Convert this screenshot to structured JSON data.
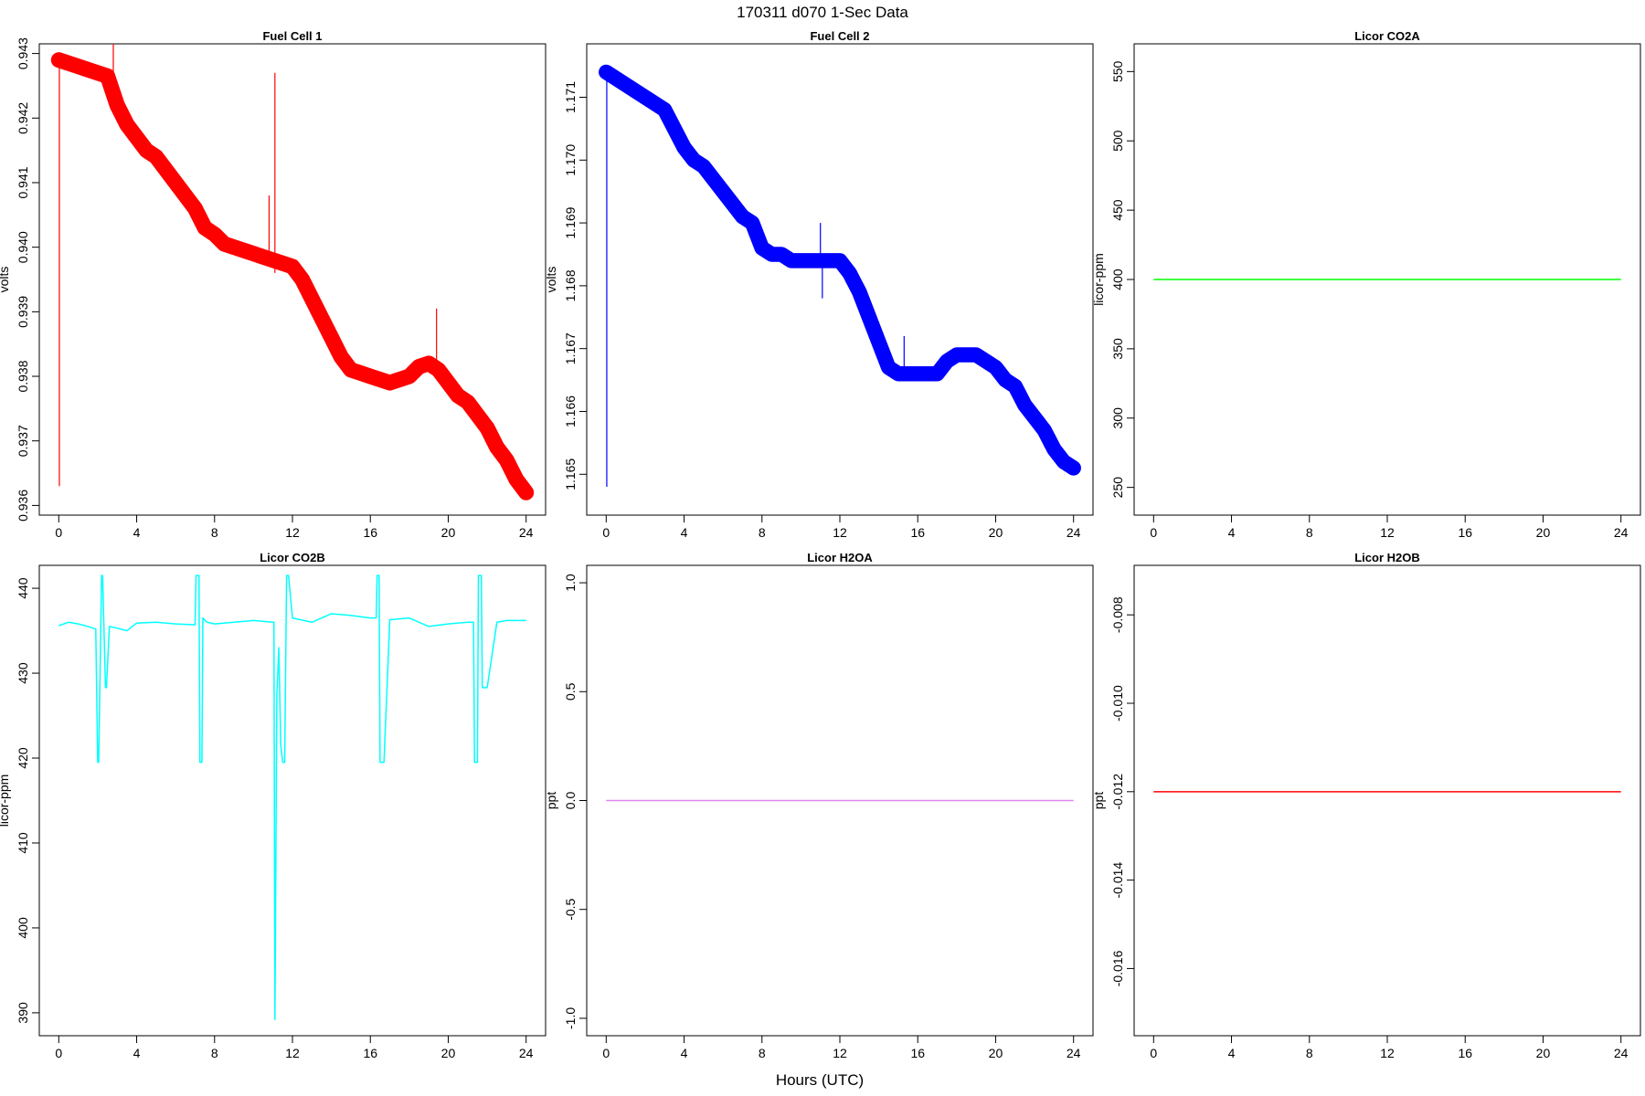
{
  "figure": {
    "title": "170311   d070   1-Sec Data",
    "xlabel": "Hours (UTC)"
  },
  "chart_data": [
    {
      "type": "line",
      "title": "Fuel Cell 1",
      "ylabel": "volts",
      "color": "#ff0000",
      "band": 0.00012,
      "xlim": [
        -1,
        25
      ],
      "ylim": [
        0.93585,
        0.94315
      ],
      "xticks": [
        0,
        4,
        8,
        12,
        16,
        20,
        24
      ],
      "yticks": [
        0.936,
        0.937,
        0.938,
        0.939,
        0.94,
        0.941,
        0.942,
        0.943
      ],
      "ytick_labels": [
        "0.936",
        "0.937",
        "0.938",
        "0.939",
        "0.940",
        "0.941",
        "0.942",
        "0.943"
      ],
      "series": [
        {
          "x": [
            0,
            0.5,
            1,
            1.5,
            2,
            2.5,
            3,
            3.5,
            4,
            4.5,
            5,
            5.5,
            6,
            6.5,
            7,
            7.5,
            8,
            8.5,
            9,
            9.5,
            10,
            10.5,
            11,
            11.5,
            12,
            12.5,
            13,
            13.5,
            14,
            14.5,
            15,
            15.5,
            16,
            16.5,
            17,
            17.5,
            18,
            18.5,
            19,
            19.5,
            20,
            20.5,
            21,
            21.5,
            22,
            22.5,
            23,
            23.5,
            24
          ],
          "y": [
            0.9429,
            0.94285,
            0.9428,
            0.94275,
            0.9427,
            0.94265,
            0.9422,
            0.9419,
            0.9417,
            0.9415,
            0.9414,
            0.9412,
            0.941,
            0.9408,
            0.9406,
            0.9403,
            0.9402,
            0.94005,
            0.94,
            0.93995,
            0.9399,
            0.93985,
            0.9398,
            0.93975,
            0.9397,
            0.9395,
            0.9392,
            0.9389,
            0.9386,
            0.9383,
            0.9381,
            0.93805,
            0.938,
            0.93795,
            0.9379,
            0.93795,
            0.938,
            0.93815,
            0.9382,
            0.9381,
            0.9379,
            0.9377,
            0.9376,
            0.9374,
            0.9372,
            0.9369,
            0.9367,
            0.9364,
            0.9362
          ]
        }
      ],
      "spikes": [
        {
          "x": 0.03,
          "y0": 0.9429,
          "y1": 0.9363
        },
        {
          "x": 2.8,
          "y0": 0.9425,
          "y1": 0.94315
        },
        {
          "x": 10.8,
          "y0": 0.9397,
          "y1": 0.9408
        },
        {
          "x": 11.1,
          "y0": 0.9396,
          "y1": 0.9427
        },
        {
          "x": 19.4,
          "y0": 0.9382,
          "y1": 0.93905
        }
      ]
    },
    {
      "type": "line",
      "title": "Fuel Cell 2",
      "ylabel": "volts",
      "color": "#0000ff",
      "band": 0.00012,
      "xlim": [
        -1,
        25
      ],
      "ylim": [
        1.16435,
        1.17185
      ],
      "xticks": [
        0,
        4,
        8,
        12,
        16,
        20,
        24
      ],
      "yticks": [
        1.165,
        1.166,
        1.167,
        1.168,
        1.169,
        1.17,
        1.171
      ],
      "ytick_labels": [
        "1.165",
        "1.166",
        "1.167",
        "1.168",
        "1.169",
        "1.170",
        "1.171"
      ],
      "series": [
        {
          "x": [
            0,
            0.5,
            1,
            1.5,
            2,
            2.5,
            3,
            3.5,
            4,
            4.5,
            5,
            5.5,
            6,
            6.5,
            7,
            7.5,
            8,
            8.5,
            9,
            9.5,
            10,
            10.5,
            11,
            11.5,
            12,
            12.5,
            13,
            13.5,
            14,
            14.5,
            15,
            15.5,
            16,
            16.5,
            17,
            17.5,
            18,
            18.5,
            19,
            19.5,
            20,
            20.5,
            21,
            21.5,
            22,
            22.5,
            23,
            23.5,
            24
          ],
          "y": [
            1.1714,
            1.1713,
            1.1712,
            1.1711,
            1.171,
            1.1709,
            1.1708,
            1.1705,
            1.1702,
            1.17,
            1.1699,
            1.1697,
            1.1695,
            1.1693,
            1.1691,
            1.169,
            1.1686,
            1.1685,
            1.1685,
            1.1684,
            1.1684,
            1.1684,
            1.1684,
            1.1684,
            1.1684,
            1.1682,
            1.1679,
            1.1675,
            1.1671,
            1.1667,
            1.1666,
            1.1666,
            1.1666,
            1.1666,
            1.1666,
            1.1668,
            1.1669,
            1.1669,
            1.1669,
            1.1668,
            1.1667,
            1.1665,
            1.1664,
            1.1661,
            1.1659,
            1.1657,
            1.1654,
            1.1652,
            1.1651
          ]
        }
      ],
      "spikes": [
        {
          "x": 0.03,
          "y0": 1.1714,
          "y1": 1.1648
        },
        {
          "x": 11.0,
          "y0": 1.1684,
          "y1": 1.169
        },
        {
          "x": 11.1,
          "y0": 1.1684,
          "y1": 1.1678
        },
        {
          "x": 15.3,
          "y0": 1.1666,
          "y1": 1.1672
        }
      ]
    },
    {
      "type": "line",
      "title": "Licor CO2A",
      "ylabel": "licor-ppm",
      "color": "#00ff00",
      "band": 0,
      "xlim": [
        -1,
        25
      ],
      "ylim": [
        230,
        570
      ],
      "xticks": [
        0,
        4,
        8,
        12,
        16,
        20,
        24
      ],
      "yticks": [
        250,
        300,
        350,
        400,
        450,
        500,
        550
      ],
      "ytick_labels": [
        "250",
        "300",
        "350",
        "400",
        "450",
        "500",
        "550"
      ],
      "series": [
        {
          "x": [
            0,
            24
          ],
          "y": [
            400,
            400
          ]
        }
      ],
      "spikes": []
    },
    {
      "type": "line",
      "title": "Licor CO2B",
      "ylabel": "licor-ppm",
      "color": "#00ffff",
      "band": 0,
      "xlim": [
        -1,
        25
      ],
      "ylim": [
        387.3,
        442.7
      ],
      "xticks": [
        0,
        4,
        8,
        12,
        16,
        20,
        24
      ],
      "yticks": [
        390,
        400,
        410,
        420,
        430,
        440
      ],
      "ytick_labels": [
        "390",
        "400",
        "410",
        "420",
        "430",
        "440"
      ],
      "series": [
        {
          "x": [
            0,
            0.5,
            1,
            1.5,
            1.9,
            2.0,
            2.05,
            2.2,
            2.25,
            2.4,
            2.45,
            2.6,
            3.0,
            3.5,
            4,
            5,
            6,
            7.0,
            7.05,
            7.2,
            7.25,
            7.35,
            7.4,
            7.6,
            8,
            9,
            10,
            11.0,
            11.05,
            11.1,
            11.2,
            11.3,
            11.4,
            11.5,
            11.6,
            11.7,
            11.8,
            12,
            13,
            14,
            15,
            16,
            16.3,
            16.35,
            16.45,
            16.5,
            16.7,
            17,
            18,
            19,
            20,
            21,
            21.3,
            21.35,
            21.5,
            21.55,
            21.7,
            21.75,
            22,
            22.5,
            23,
            24
          ],
          "y": [
            435.6,
            436.0,
            435.8,
            435.5,
            435.2,
            419.5,
            419.5,
            441.5,
            441.5,
            428.3,
            428.3,
            435.5,
            435.3,
            435.0,
            435.9,
            436.0,
            435.8,
            435.7,
            441.5,
            441.5,
            419.5,
            419.5,
            436.5,
            436.0,
            435.8,
            436.0,
            436.2,
            436.0,
            436.0,
            389.2,
            427.5,
            433.0,
            421.5,
            419.5,
            419.5,
            441.5,
            441.5,
            436.5,
            436.0,
            437.0,
            436.8,
            436.5,
            436.5,
            441.5,
            441.5,
            419.5,
            419.5,
            436.3,
            436.5,
            435.5,
            435.8,
            436.0,
            436.0,
            419.5,
            419.5,
            441.5,
            441.5,
            428.3,
            428.3,
            436.0,
            436.2,
            436.2
          ]
        }
      ],
      "spikes": []
    },
    {
      "type": "line",
      "title": "Licor H2OA",
      "ylabel": "ppt",
      "color": "#dd88ee",
      "band": 0,
      "xlim": [
        -1,
        25
      ],
      "ylim": [
        -1.08,
        1.08
      ],
      "xticks": [
        0,
        4,
        8,
        12,
        16,
        20,
        24
      ],
      "yticks": [
        -1.0,
        -0.5,
        0.0,
        0.5,
        1.0
      ],
      "ytick_labels": [
        "-1.0",
        "-0.5",
        "0.0",
        "0.5",
        "1.0"
      ],
      "series": [
        {
          "x": [
            0,
            24
          ],
          "y": [
            0,
            0
          ]
        }
      ],
      "spikes": []
    },
    {
      "type": "line",
      "title": "Licor H2OB",
      "ylabel": "ppt",
      "color": "#ff0000",
      "band": 0,
      "xlim": [
        -1,
        25
      ],
      "ylim": [
        -0.01752,
        -0.00688
      ],
      "xticks": [
        0,
        4,
        8,
        12,
        16,
        20,
        24
      ],
      "yticks": [
        -0.016,
        -0.014,
        -0.012,
        -0.01,
        -0.008
      ],
      "ytick_labels": [
        "-0.016",
        "-0.014",
        "-0.012",
        "-0.010",
        "-0.008"
      ],
      "series": [
        {
          "x": [
            0,
            24
          ],
          "y": [
            -0.012,
            -0.012
          ]
        }
      ],
      "spikes": []
    }
  ]
}
